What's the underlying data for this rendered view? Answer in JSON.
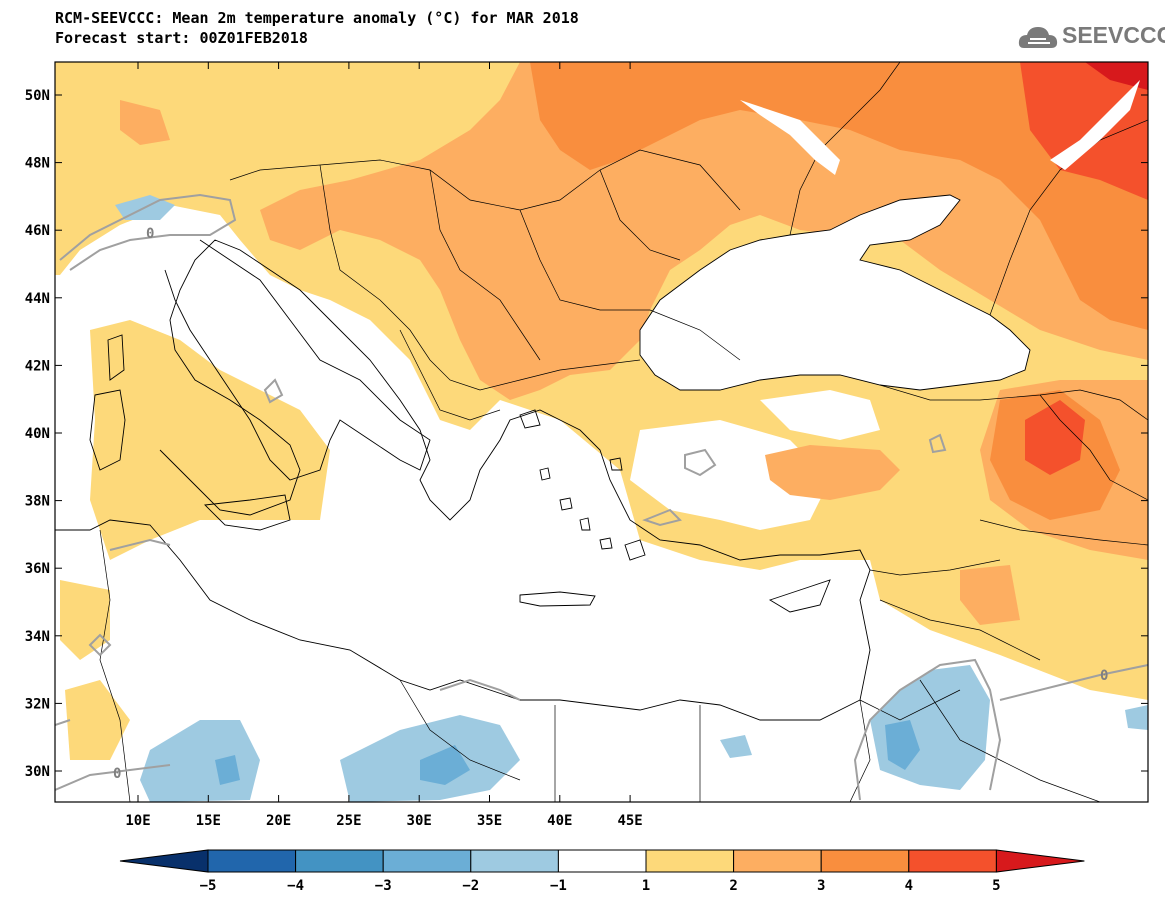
{
  "title": {
    "line1": "RCM-SEEVCCC: Mean 2m temperature anomaly (°C) for MAR 2018",
    "line2": "Forecast start: 00Z01FEB2018"
  },
  "logo": {
    "text": "SEEVCCC",
    "icon": "cloud-icon"
  },
  "map": {
    "lat_labels": [
      "50N",
      "48N",
      "46N",
      "44N",
      "42N",
      "40N",
      "38N",
      "36N",
      "34N",
      "32N",
      "30N"
    ],
    "lon_labels": [
      "10E",
      "15E",
      "20E",
      "25E",
      "30E",
      "35E",
      "40E",
      "45E"
    ],
    "contour_labels": [
      "0",
      "0",
      "0",
      "0"
    ],
    "extent": {
      "lon": [
        7,
        46
      ],
      "lat": [
        29,
        51
      ]
    }
  },
  "colorbar": {
    "labels": [
      "−5",
      "−4",
      "−3",
      "−2",
      "−1",
      "1",
      "2",
      "3",
      "4",
      "5"
    ],
    "colors": [
      "#08306b",
      "#2166ac",
      "#4393c3",
      "#6baed6",
      "#9ecae1",
      "#ffffff",
      "#fdd97a",
      "#fdae61",
      "#f98e3e",
      "#f4512c",
      "#d7191c"
    ]
  }
}
